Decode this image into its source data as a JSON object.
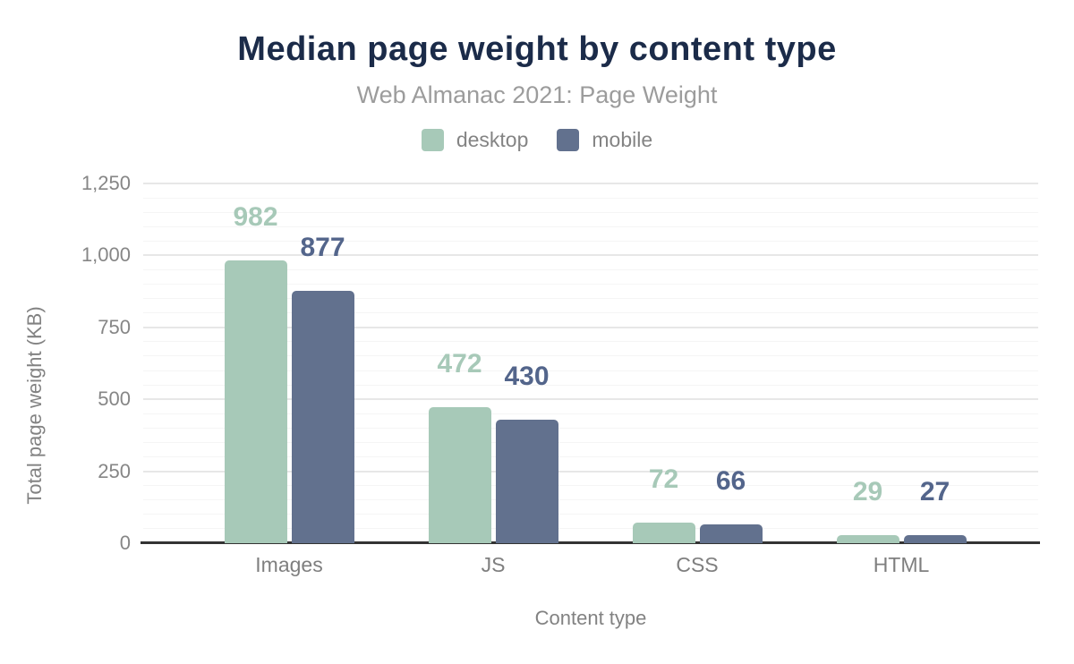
{
  "chart_data": {
    "type": "bar",
    "title": "Median page weight by content type",
    "subtitle": "Web Almanac 2021: Page Weight",
    "xlabel": "Content type",
    "ylabel": "Total page weight (KB)",
    "categories": [
      "Images",
      "JS",
      "CSS",
      "HTML"
    ],
    "series": [
      {
        "name": "desktop",
        "color": "#a7c9b8",
        "label_color": "#a7c9b8",
        "values": [
          982,
          472,
          72,
          29
        ]
      },
      {
        "name": "mobile",
        "color": "#62718e",
        "label_color": "#53658b",
        "values": [
          877,
          430,
          66,
          27
        ]
      }
    ],
    "ylim": [
      0,
      1250
    ],
    "yticks": [
      {
        "value": 0,
        "label": "0"
      },
      {
        "value": 250,
        "label": "250"
      },
      {
        "value": 500,
        "label": "500"
      },
      {
        "value": 750,
        "label": "750"
      },
      {
        "value": 1000,
        "label": "1,000"
      },
      {
        "value": 1250,
        "label": "1,250"
      }
    ],
    "minor_grid_step": 50,
    "grid": "on",
    "legend_position": "top",
    "value_labels": "above-bars"
  },
  "styles": {
    "background": "#ffffff",
    "title_color": "#1b2b49",
    "subtitle_color": "#9c9c9c",
    "axis_text_color": "#828282",
    "grid_major_color": "#e7e7e7",
    "grid_minor_color": "#f5f5f5",
    "axis_line_color": "#333333"
  }
}
